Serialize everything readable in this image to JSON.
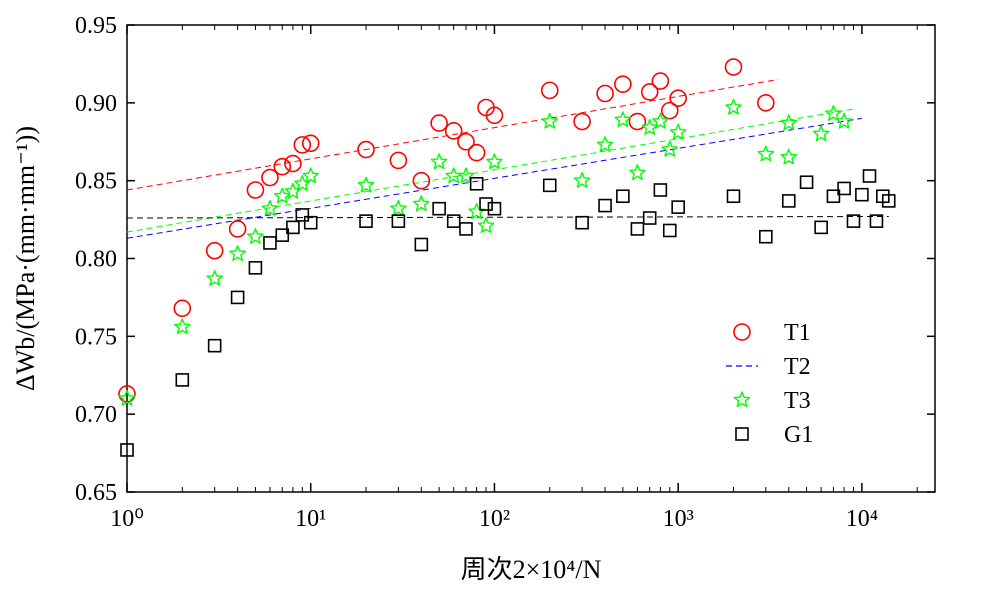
{
  "chart_data": {
    "type": "scatter",
    "xlabel": "周次2×10⁴/N",
    "ylabel": "ΔWb/(MPa·(mm·mm⁻¹))",
    "xscale": "log",
    "xlim": [
      1,
      25000
    ],
    "ylim": [
      0.65,
      0.95
    ],
    "xticks": [
      "10⁰",
      "10¹",
      "10²",
      "10³",
      "10⁴"
    ],
    "yticks": [
      "0.65",
      "0.70",
      "0.75",
      "0.80",
      "0.85",
      "0.90",
      "0.95"
    ],
    "grid": false,
    "legend": "right",
    "series": [
      {
        "name": "T1",
        "marker": "circle",
        "color": "#ff0000",
        "points": [
          [
            1,
            0.713
          ],
          [
            2,
            0.768
          ],
          [
            3,
            0.805
          ],
          [
            4,
            0.819
          ],
          [
            5,
            0.844
          ],
          [
            6,
            0.852
          ],
          [
            7,
            0.859
          ],
          [
            8,
            0.861
          ],
          [
            9,
            0.873
          ],
          [
            10,
            0.874
          ],
          [
            20,
            0.87
          ],
          [
            30,
            0.863
          ],
          [
            40,
            0.85
          ],
          [
            50,
            0.887
          ],
          [
            60,
            0.882
          ],
          [
            70,
            0.875
          ],
          [
            80,
            0.868
          ],
          [
            90,
            0.897
          ],
          [
            100,
            0.892
          ],
          [
            200,
            0.908
          ],
          [
            300,
            0.888
          ],
          [
            400,
            0.906
          ],
          [
            500,
            0.912
          ],
          [
            600,
            0.888
          ],
          [
            700,
            0.907
          ],
          [
            800,
            0.914
          ],
          [
            900,
            0.895
          ],
          [
            1000,
            0.903
          ],
          [
            2000,
            0.923
          ],
          [
            3000,
            0.9
          ]
        ],
        "trend": [
          [
            1,
            0.844
          ],
          [
            3500,
            0.915
          ]
        ]
      },
      {
        "name": "T2",
        "marker": "dashed-line",
        "color": "#0000ff",
        "points": [],
        "trend": [
          [
            1,
            0.813
          ],
          [
            10000,
            0.89
          ]
        ]
      },
      {
        "name": "T3",
        "marker": "star",
        "color": "#00ff00",
        "points": [
          [
            1,
            0.71
          ],
          [
            2,
            0.756
          ],
          [
            3,
            0.787
          ],
          [
            4,
            0.803
          ],
          [
            5,
            0.814
          ],
          [
            6,
            0.832
          ],
          [
            7,
            0.84
          ],
          [
            8,
            0.843
          ],
          [
            9,
            0.848
          ],
          [
            10,
            0.853
          ],
          [
            20,
            0.847
          ],
          [
            30,
            0.832
          ],
          [
            40,
            0.835
          ],
          [
            50,
            0.862
          ],
          [
            60,
            0.853
          ],
          [
            70,
            0.853
          ],
          [
            80,
            0.83
          ],
          [
            90,
            0.821
          ],
          [
            100,
            0.862
          ],
          [
            200,
            0.888
          ],
          [
            300,
            0.85
          ],
          [
            400,
            0.873
          ],
          [
            500,
            0.889
          ],
          [
            600,
            0.855
          ],
          [
            700,
            0.884
          ],
          [
            800,
            0.888
          ],
          [
            900,
            0.87
          ],
          [
            1000,
            0.881
          ],
          [
            2000,
            0.897
          ],
          [
            3000,
            0.867
          ],
          [
            4000,
            0.887
          ],
          [
            4000,
            0.865
          ],
          [
            6000,
            0.88
          ],
          [
            7000,
            0.893
          ],
          [
            8000,
            0.888
          ]
        ],
        "trend": [
          [
            1,
            0.817
          ],
          [
            9000,
            0.896
          ]
        ]
      },
      {
        "name": "G1",
        "marker": "square",
        "color": "#000000",
        "points": [
          [
            1,
            0.677
          ],
          [
            2,
            0.722
          ],
          [
            3,
            0.744
          ],
          [
            4,
            0.775
          ],
          [
            5,
            0.794
          ],
          [
            6,
            0.81
          ],
          [
            7,
            0.815
          ],
          [
            8,
            0.82
          ],
          [
            9,
            0.828
          ],
          [
            10,
            0.823
          ],
          [
            20,
            0.824
          ],
          [
            30,
            0.824
          ],
          [
            40,
            0.809
          ],
          [
            50,
            0.832
          ],
          [
            60,
            0.824
          ],
          [
            70,
            0.819
          ],
          [
            80,
            0.848
          ],
          [
            90,
            0.835
          ],
          [
            100,
            0.832
          ],
          [
            200,
            0.847
          ],
          [
            300,
            0.823
          ],
          [
            400,
            0.834
          ],
          [
            500,
            0.84
          ],
          [
            600,
            0.819
          ],
          [
            700,
            0.826
          ],
          [
            800,
            0.844
          ],
          [
            900,
            0.818
          ],
          [
            1000,
            0.833
          ],
          [
            2000,
            0.84
          ],
          [
            3000,
            0.814
          ],
          [
            4000,
            0.837
          ],
          [
            5000,
            0.849
          ],
          [
            6000,
            0.82
          ],
          [
            7000,
            0.84
          ],
          [
            8000,
            0.845
          ],
          [
            9000,
            0.824
          ],
          [
            10000,
            0.841
          ],
          [
            11000,
            0.853
          ],
          [
            12000,
            0.824
          ],
          [
            13000,
            0.84
          ],
          [
            14000,
            0.837
          ]
        ],
        "trend": [
          [
            1,
            0.826
          ],
          [
            14000,
            0.827
          ]
        ]
      }
    ]
  }
}
